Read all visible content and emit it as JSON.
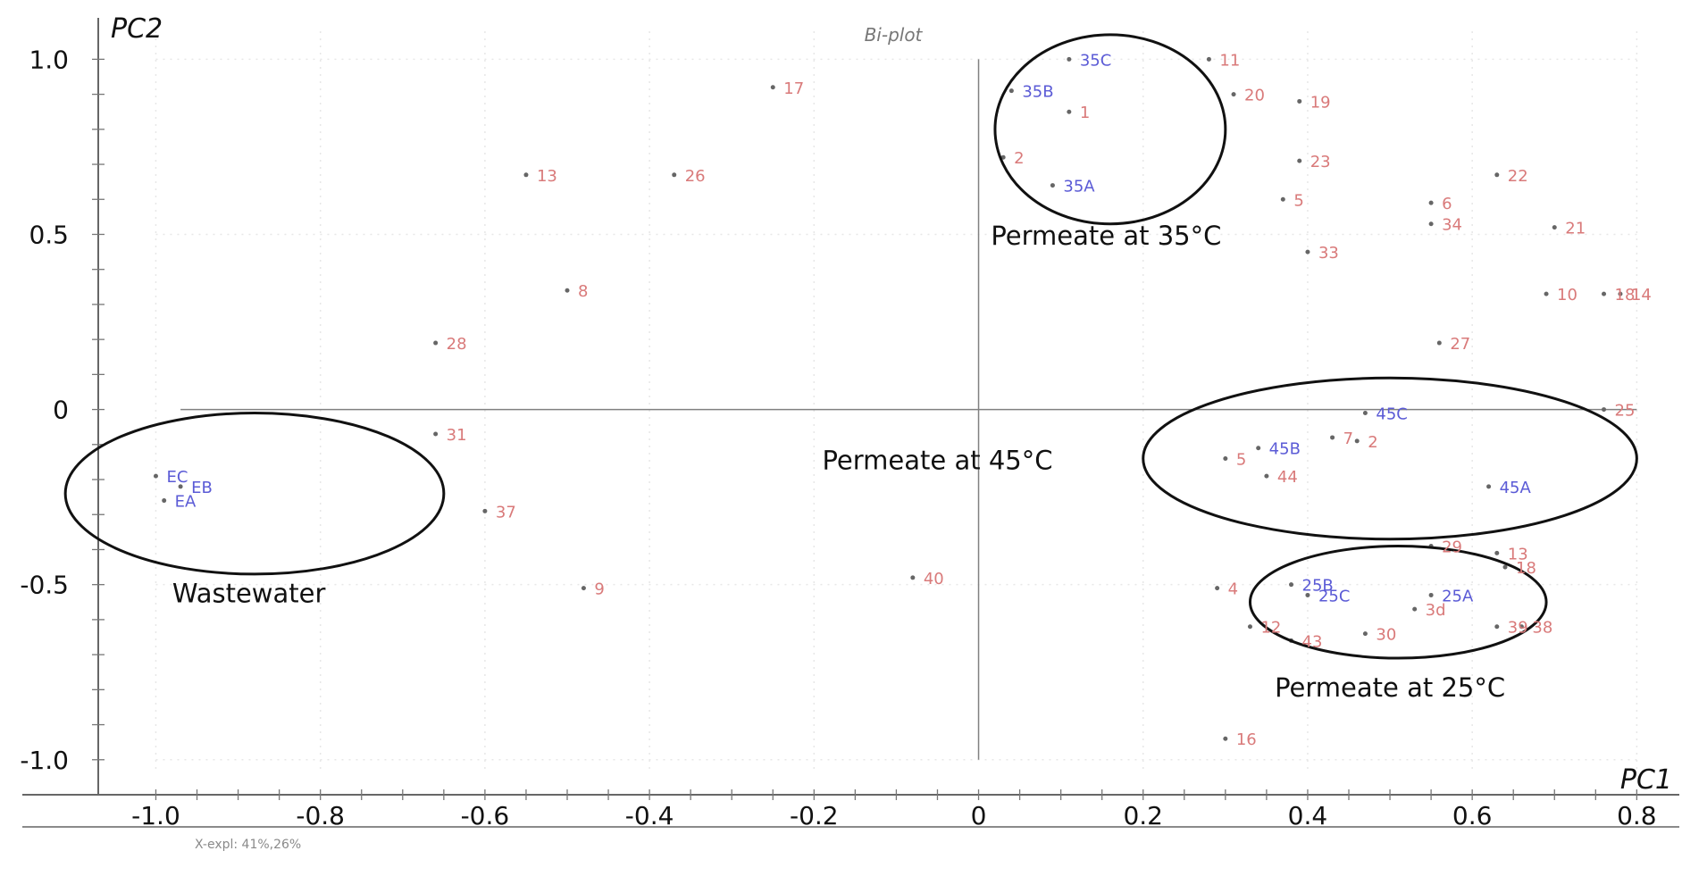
{
  "chart_data": {
    "type": "scatter",
    "title": "Bi-plot",
    "xlabel": "PC1",
    "ylabel": "PC2",
    "footer_note": "X-expl: 41%,26%",
    "xlim": [
      -1.07,
      0.83
    ],
    "ylim": [
      -1.1,
      1.08
    ],
    "grid": true,
    "x_ticks": [
      -1.0,
      -0.8,
      -0.6,
      -0.4,
      -0.2,
      0,
      0.2,
      0.4,
      0.6,
      0.8
    ],
    "x_tick_labels": [
      "-1.0",
      "-0.8",
      "-0.6",
      "-0.4",
      "-0.2",
      "0",
      "0.2",
      "0.4",
      "0.6",
      "0.8"
    ],
    "y_ticks": [
      1.0,
      0.5,
      0,
      -0.5,
      -1.0
    ],
    "y_tick_labels": [
      "1.0",
      "0.5",
      "0",
      "-0.5",
      "-1.0"
    ],
    "series": [
      {
        "color": "#d97a7a",
        "points": [
          {
            "label": "17",
            "x": -0.25,
            "y": 0.92
          },
          {
            "label": "13",
            "x": -0.55,
            "y": 0.67
          },
          {
            "label": "26",
            "x": -0.37,
            "y": 0.67
          },
          {
            "label": "8",
            "x": -0.5,
            "y": 0.34
          },
          {
            "label": "28",
            "x": -0.66,
            "y": 0.19
          },
          {
            "label": "31",
            "x": -0.66,
            "y": -0.07
          },
          {
            "label": "37",
            "x": -0.6,
            "y": -0.29
          },
          {
            "label": "9",
            "x": -0.48,
            "y": -0.51
          },
          {
            "label": "40",
            "x": -0.08,
            "y": -0.48
          },
          {
            "label": "11",
            "x": 0.28,
            "y": 1.0
          },
          {
            "label": "1",
            "x": 0.11,
            "y": 0.85
          },
          {
            "label": "2",
            "x": 0.03,
            "y": 0.72
          },
          {
            "label": "20",
            "x": 0.31,
            "y": 0.9
          },
          {
            "label": "19",
            "x": 0.39,
            "y": 0.88
          },
          {
            "label": "23",
            "x": 0.39,
            "y": 0.71
          },
          {
            "label": "5",
            "x": 0.37,
            "y": 0.6
          },
          {
            "label": "33",
            "x": 0.4,
            "y": 0.45
          },
          {
            "label": "22",
            "x": 0.63,
            "y": 0.67
          },
          {
            "label": "6",
            "x": 0.55,
            "y": 0.59
          },
          {
            "label": "34",
            "x": 0.55,
            "y": 0.53
          },
          {
            "label": "21",
            "x": 0.7,
            "y": 0.52
          },
          {
            "label": "10",
            "x": 0.69,
            "y": 0.33
          },
          {
            "label": "18",
            "x": 0.76,
            "y": 0.33
          },
          {
            "label": "14",
            "x": 0.78,
            "y": 0.33
          },
          {
            "label": "27",
            "x": 0.56,
            "y": 0.19
          },
          {
            "label": "25",
            "x": 0.76,
            "y": 0.0
          },
          {
            "label": "7",
            "x": 0.43,
            "y": -0.08
          },
          {
            "label": "2",
            "x": 0.46,
            "y": -0.09
          },
          {
            "label": "44",
            "x": 0.35,
            "y": -0.19
          },
          {
            "label": "5",
            "x": 0.3,
            "y": -0.14
          },
          {
            "label": "4",
            "x": 0.29,
            "y": -0.51
          },
          {
            "label": "12",
            "x": 0.33,
            "y": -0.62
          },
          {
            "label": "43",
            "x": 0.38,
            "y": -0.66
          },
          {
            "label": "30",
            "x": 0.47,
            "y": -0.64
          },
          {
            "label": "3d",
            "x": 0.53,
            "y": -0.57
          },
          {
            "label": "29",
            "x": 0.55,
            "y": -0.39
          },
          {
            "label": "13",
            "x": 0.63,
            "y": -0.41
          },
          {
            "label": "18",
            "x": 0.64,
            "y": -0.45
          },
          {
            "label": "39",
            "x": 0.63,
            "y": -0.62
          },
          {
            "label": "38",
            "x": 0.66,
            "y": -0.62
          },
          {
            "label": "16",
            "x": 0.3,
            "y": -0.94
          }
        ]
      },
      {
        "color": "#5b5bd6",
        "points": [
          {
            "label": "35C",
            "x": 0.11,
            "y": 1.0
          },
          {
            "label": "35B",
            "x": 0.04,
            "y": 0.91
          },
          {
            "label": "35A",
            "x": 0.09,
            "y": 0.64
          },
          {
            "label": "45C",
            "x": 0.47,
            "y": -0.01
          },
          {
            "label": "45B",
            "x": 0.34,
            "y": -0.11
          },
          {
            "label": "45A",
            "x": 0.62,
            "y": -0.22
          },
          {
            "label": "25B",
            "x": 0.38,
            "y": -0.5
          },
          {
            "label": "25C",
            "x": 0.4,
            "y": -0.53
          },
          {
            "label": "25A",
            "x": 0.55,
            "y": -0.53
          },
          {
            "label": "EC",
            "x": -1.0,
            "y": -0.19
          },
          {
            "label": "EB",
            "x": -0.97,
            "y": -0.22
          },
          {
            "label": "EA",
            "x": -0.99,
            "y": -0.26
          }
        ]
      }
    ],
    "groups": [
      {
        "label": "Permeate at 35°C",
        "cx": 0.16,
        "cy": 0.8,
        "rx": 0.14,
        "ry": 0.27
      },
      {
        "label": "Permeate at 45°C",
        "cx": 0.5,
        "cy": -0.14,
        "rx": 0.3,
        "ry": 0.23
      },
      {
        "label": "Permeate at 25°C",
        "cx": 0.51,
        "cy": -0.55,
        "rx": 0.18,
        "ry": 0.16
      },
      {
        "label": "Wastewater",
        "cx": -0.88,
        "cy": -0.24,
        "rx": 0.23,
        "ry": 0.23
      }
    ]
  }
}
